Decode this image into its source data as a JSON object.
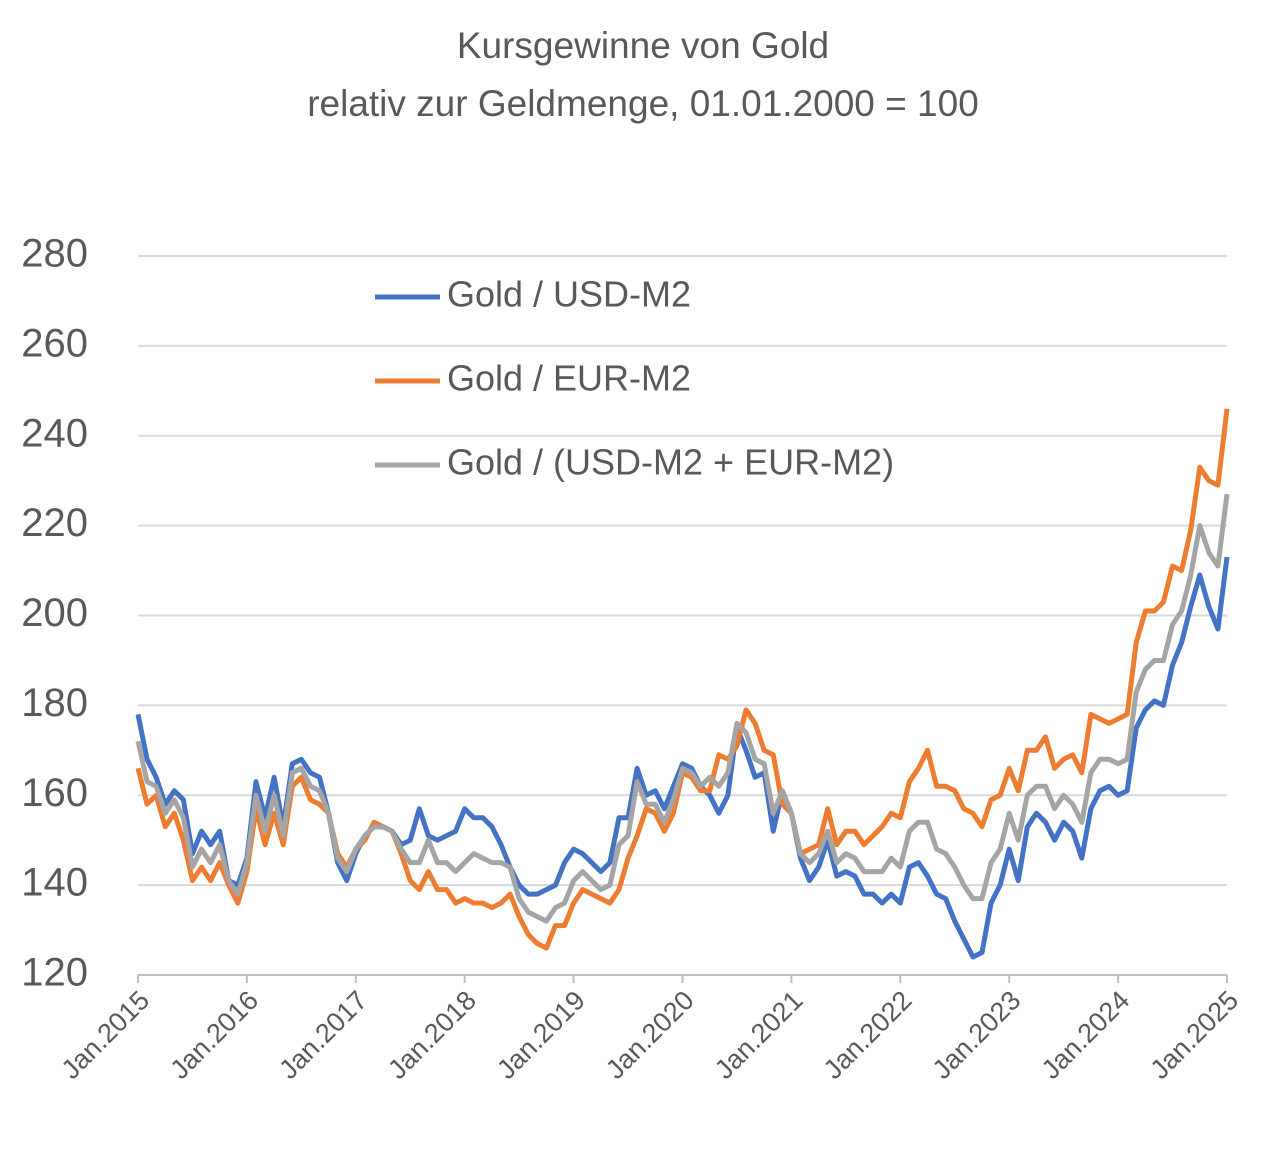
{
  "chart_data": {
    "type": "line",
    "title": "Kursgewinne von Gold",
    "subtitle": "relativ zur Geldmenge, 01.01.2000 = 100",
    "categories": [
      "Jan.2015",
      null,
      null,
      null,
      null,
      null,
      null,
      null,
      null,
      null,
      null,
      null,
      "Jan.2016",
      null,
      null,
      null,
      null,
      null,
      null,
      null,
      null,
      null,
      null,
      null,
      "Jan.2017",
      null,
      null,
      null,
      null,
      null,
      null,
      null,
      null,
      null,
      null,
      null,
      "Jan.2018",
      null,
      null,
      null,
      null,
      null,
      null,
      null,
      null,
      null,
      null,
      null,
      "Jan.2019",
      null,
      null,
      null,
      null,
      null,
      null,
      null,
      null,
      null,
      null,
      null,
      "Jan.2020",
      null,
      null,
      null,
      null,
      null,
      null,
      null,
      null,
      null,
      null,
      null,
      "Jan.2021",
      null,
      null,
      null,
      null,
      null,
      null,
      null,
      null,
      null,
      null,
      null,
      "Jan.2022",
      null,
      null,
      null,
      null,
      null,
      null,
      null,
      null,
      null,
      null,
      null,
      "Jan.2023",
      null,
      null,
      null,
      null,
      null,
      null,
      null,
      null,
      null,
      null,
      null,
      "Jan.2024",
      null,
      null,
      null,
      null,
      null,
      null,
      null,
      null,
      null,
      null,
      null,
      "Jan.2025"
    ],
    "series": [
      {
        "name": "Gold / USD-M2",
        "color": "#4472c4",
        "values": [
          178,
          168,
          164,
          158,
          161,
          159,
          147,
          152,
          149,
          152,
          141,
          140,
          146,
          163,
          155,
          164,
          153,
          167,
          168,
          165,
          164,
          156,
          145,
          141,
          147,
          151,
          153,
          153,
          152,
          149,
          150,
          157,
          151,
          150,
          151,
          152,
          157,
          155,
          155,
          153,
          149,
          144,
          140,
          138,
          138,
          139,
          140,
          145,
          148,
          147,
          145,
          143,
          145,
          155,
          155,
          166,
          160,
          161,
          157,
          162,
          167,
          166,
          162,
          160,
          156,
          160,
          175,
          170,
          164,
          165,
          152,
          161,
          156,
          146,
          141,
          144,
          150,
          142,
          143,
          142,
          138,
          138,
          136,
          138,
          136,
          144,
          145,
          142,
          138,
          137,
          132,
          128,
          124,
          125,
          136,
          140,
          148,
          141,
          153,
          156,
          154,
          150,
          154,
          152,
          146,
          157,
          161,
          162,
          160,
          161,
          175,
          179,
          181,
          180,
          189,
          194,
          202,
          209,
          202,
          197,
          213
        ]
      },
      {
        "name": "Gold / EUR-M2",
        "color": "#ed7d31",
        "values": [
          166,
          158,
          160,
          153,
          156,
          150,
          141,
          144,
          141,
          145,
          140,
          136,
          143,
          157,
          149,
          156,
          149,
          162,
          164,
          159,
          158,
          156,
          147,
          144,
          148,
          150,
          154,
          153,
          152,
          147,
          141,
          139,
          143,
          139,
          139,
          136,
          137,
          136,
          136,
          135,
          136,
          138,
          133,
          129,
          127,
          126,
          131,
          131,
          136,
          139,
          138,
          137,
          136,
          139,
          146,
          151,
          157,
          156,
          152,
          156,
          165,
          164,
          161,
          161,
          169,
          168,
          171,
          179,
          176,
          170,
          169,
          158,
          156,
          147,
          148,
          149,
          157,
          149,
          152,
          152,
          149,
          151,
          153,
          156,
          155,
          163,
          166,
          170,
          162,
          162,
          161,
          157,
          156,
          153,
          159,
          160,
          166,
          161,
          170,
          170,
          173,
          166,
          168,
          169,
          165,
          178,
          177,
          176,
          177,
          178,
          194,
          201,
          201,
          203,
          211,
          210,
          219,
          233,
          230,
          229,
          246
        ]
      },
      {
        "name": "Gold / (USD-M2 + EUR-M2)",
        "color": "#a5a5a5",
        "values": [
          172,
          163,
          162,
          156,
          159,
          155,
          144,
          148,
          145,
          149,
          141,
          138,
          145,
          160,
          152,
          160,
          151,
          165,
          166,
          162,
          161,
          156,
          146,
          143,
          148,
          151,
          153,
          153,
          152,
          148,
          145,
          145,
          150,
          145,
          145,
          143,
          145,
          147,
          146,
          145,
          145,
          144,
          137,
          134,
          133,
          132,
          135,
          136,
          141,
          143,
          141,
          139,
          140,
          149,
          151,
          163,
          158,
          158,
          154,
          159,
          166,
          165,
          162,
          164,
          162,
          165,
          176,
          174,
          168,
          167,
          156,
          161,
          156,
          147,
          145,
          147,
          152,
          145,
          147,
          146,
          143,
          143,
          143,
          146,
          144,
          152,
          154,
          154,
          148,
          147,
          144,
          140,
          137,
          137,
          145,
          148,
          156,
          150,
          160,
          162,
          162,
          157,
          160,
          158,
          154,
          165,
          168,
          168,
          167,
          168,
          183,
          188,
          190,
          190,
          198,
          201,
          209,
          220,
          214,
          211,
          227
        ]
      }
    ],
    "ylim": [
      120,
      280
    ],
    "yticks": [
      120,
      140,
      160,
      180,
      200,
      220,
      240,
      260,
      280
    ],
    "grid": true,
    "legend": "upper center"
  }
}
